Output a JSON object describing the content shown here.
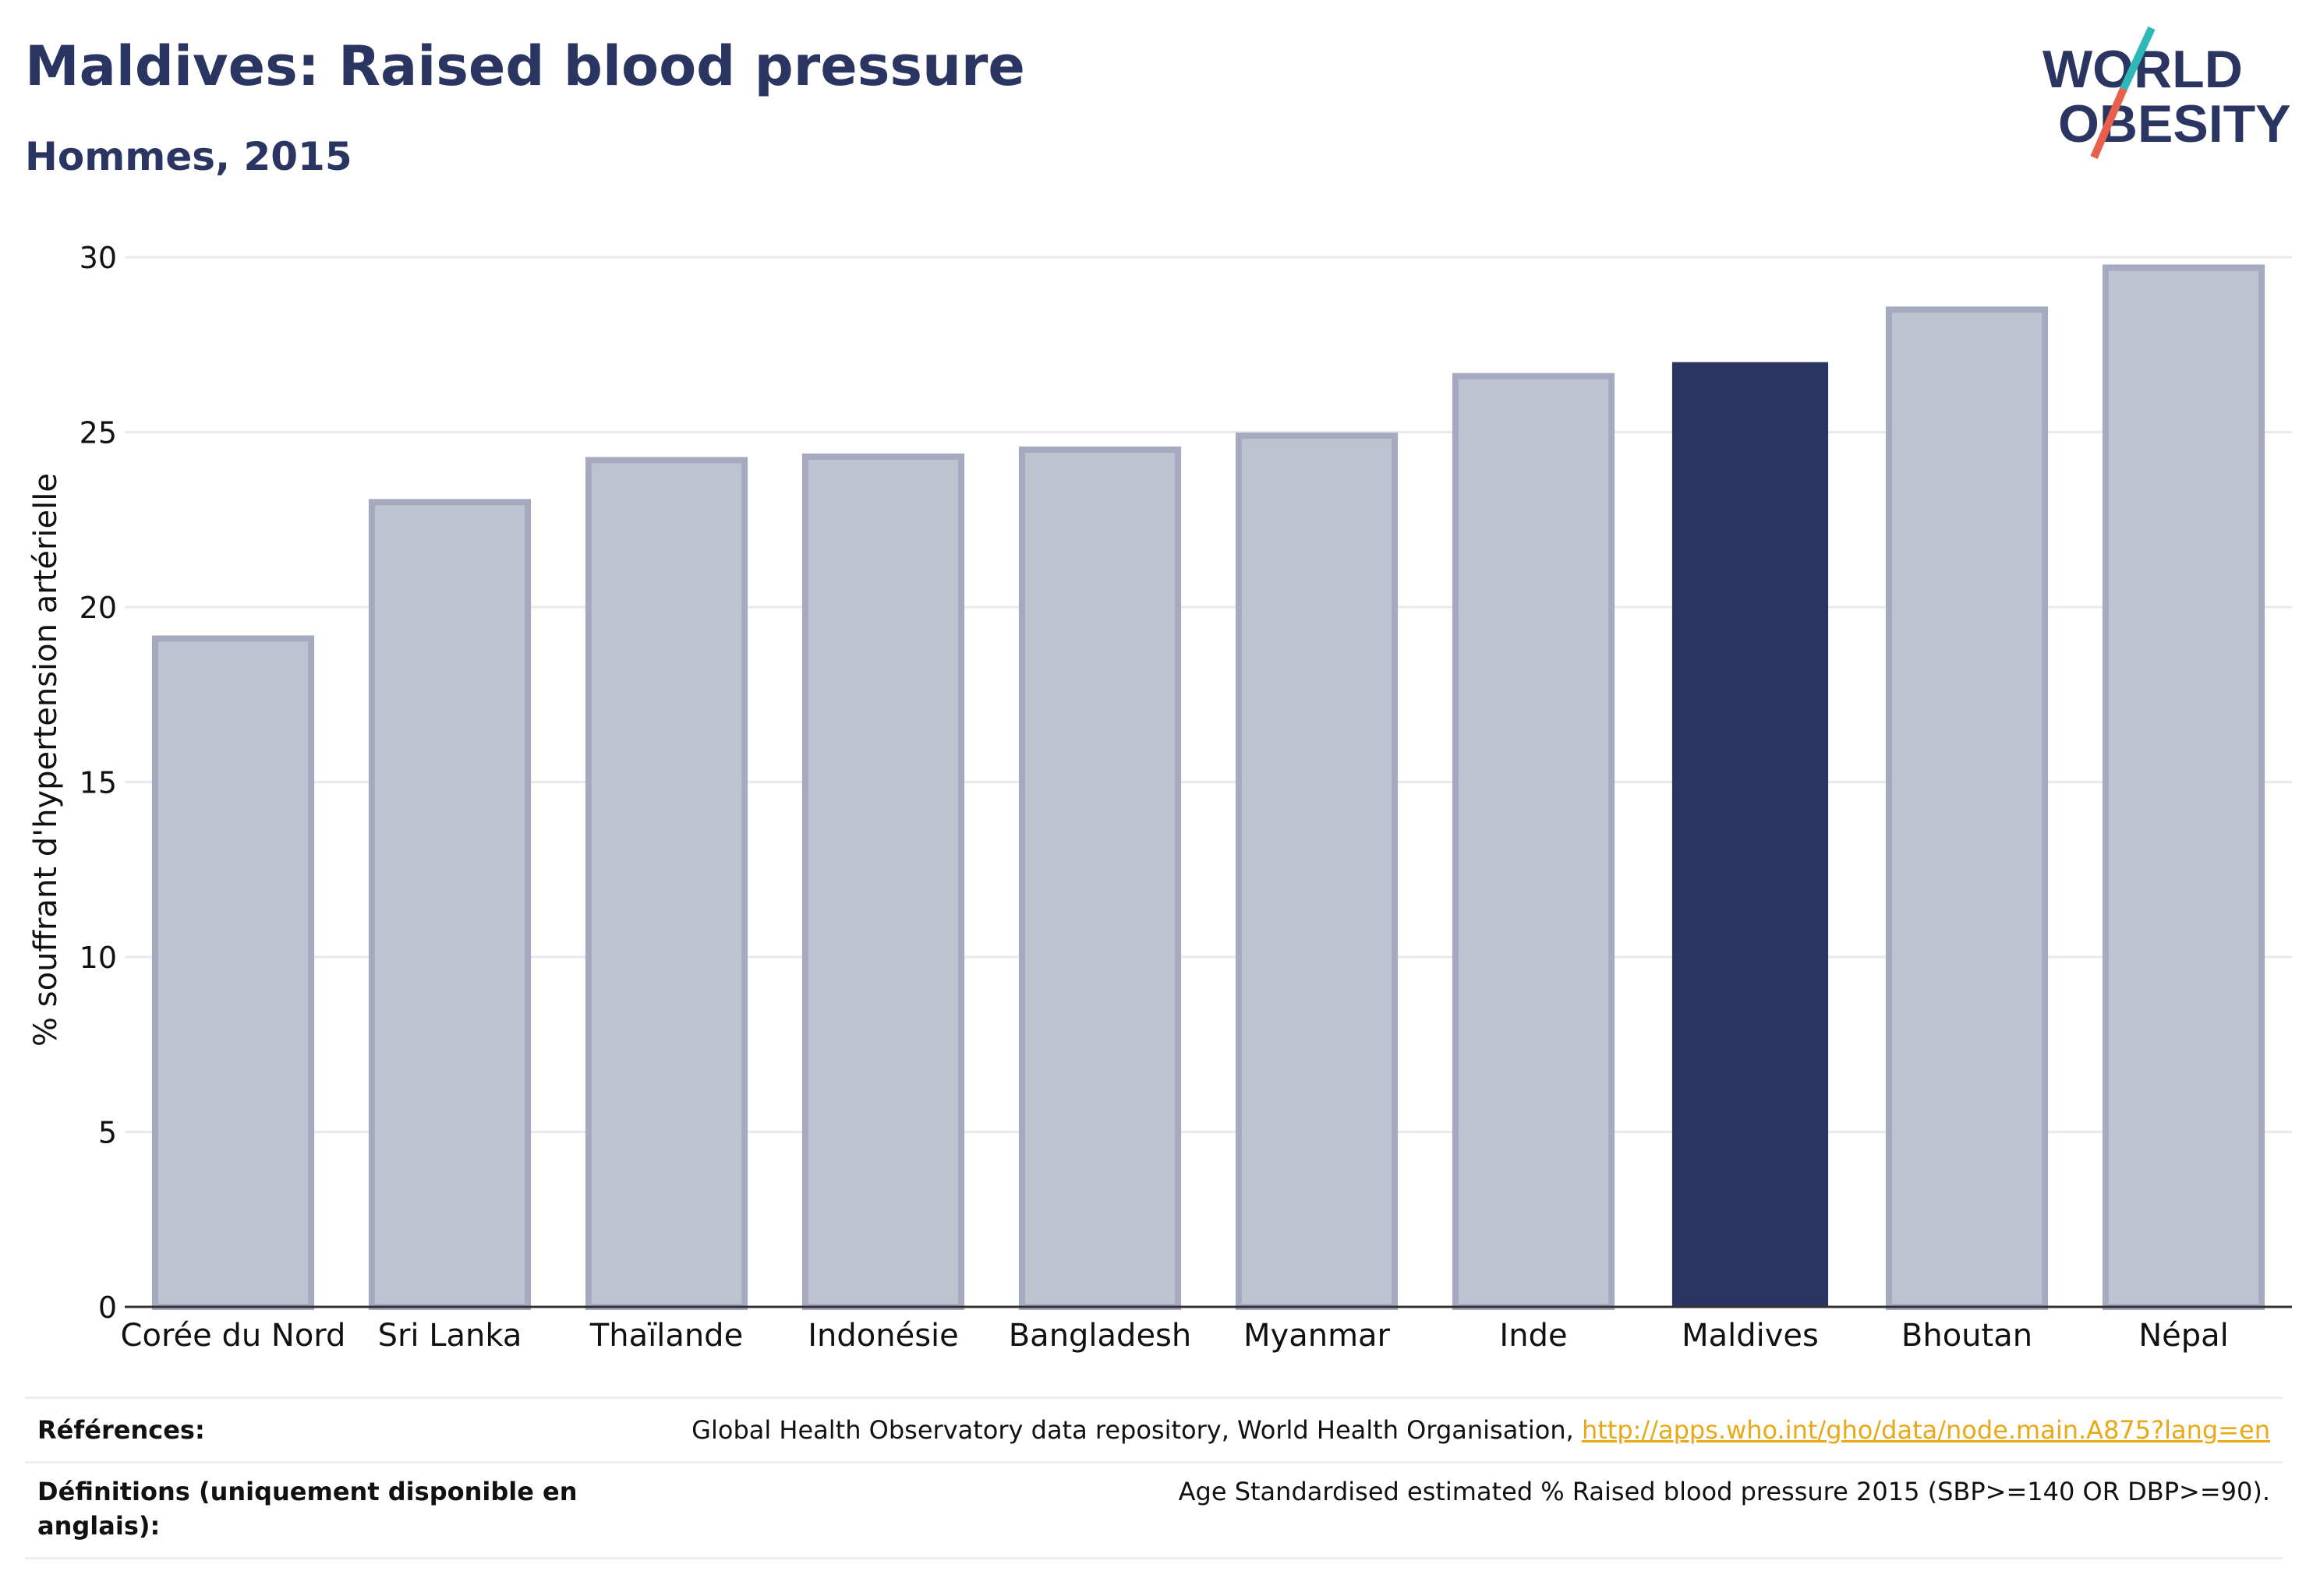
{
  "header": {
    "title": "Maldives: Raised blood pressure",
    "subtitle": "Hommes, 2015"
  },
  "logo": {
    "line1": "WORLD",
    "line2": "OBESITY",
    "slash_colors": [
      "#2fb8b8",
      "#e8604c"
    ]
  },
  "colors": {
    "bar_default_fill": "#bfc2cf",
    "bar_default_stroke": "#a6aac0",
    "bar_highlight": "#2b3561",
    "text": "#2b3561",
    "link": "#e8a817"
  },
  "chart_data": {
    "type": "bar",
    "categories": [
      "Corée du Nord",
      "Sri Lanka",
      "Thaïlande",
      "Indonésie",
      "Bangladesh",
      "Myanmar",
      "Inde",
      "Maldives",
      "Bhoutan",
      "Népal"
    ],
    "values": [
      19.1,
      23.0,
      24.2,
      24.3,
      24.5,
      24.9,
      26.6,
      27.0,
      28.5,
      29.7
    ],
    "highlight": "Maldives",
    "ylabel": "% souffrant d'hypertension artérielle",
    "xlabel": "",
    "ylim": [
      0,
      30
    ],
    "yticks": [
      0,
      5,
      10,
      15,
      20,
      25,
      30
    ],
    "grid": true
  },
  "footer": {
    "references_label": "Références:",
    "references_text": "Global Health Observatory data repository, World Health Organisation, ",
    "references_link": "http://apps.who.int/gho/data/node.main.A875?lang=en",
    "definitions_label_line1": "Définitions (uniquement disponible en",
    "definitions_label_line2": "anglais):",
    "definitions_text": "Age Standardised estimated % Raised blood pressure 2015 (SBP>=140 OR DBP>=90)."
  }
}
